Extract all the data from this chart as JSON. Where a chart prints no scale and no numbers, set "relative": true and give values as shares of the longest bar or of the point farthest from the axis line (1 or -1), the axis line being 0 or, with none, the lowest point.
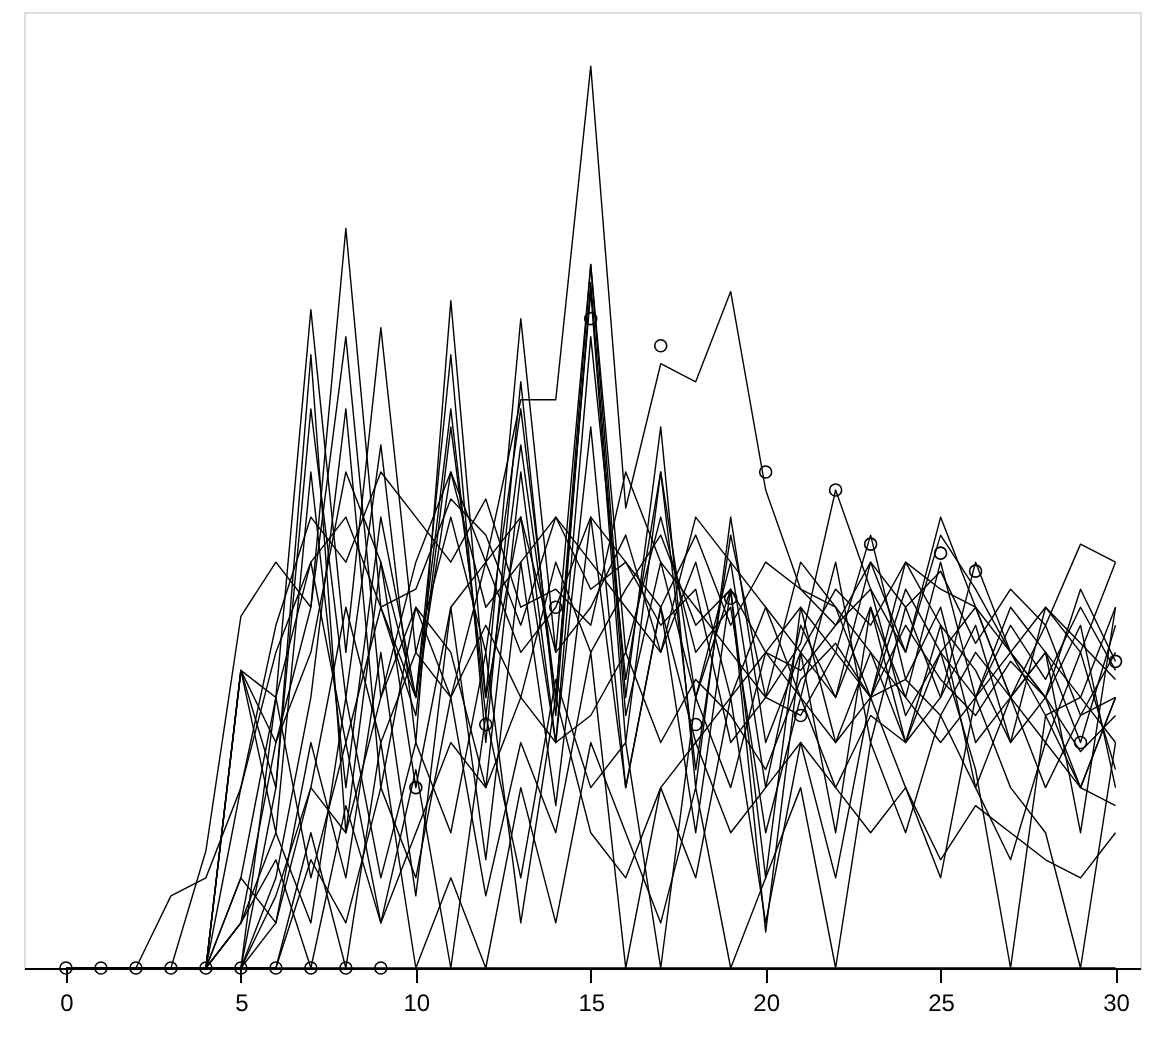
{
  "chart_data": {
    "type": "line",
    "relative": true,
    "tick_labels": "x",
    "line_style": "solid",
    "x": [
      0,
      1,
      2,
      3,
      4,
      5,
      6,
      7,
      8,
      9,
      10,
      11,
      12,
      13,
      14,
      15,
      16,
      17,
      18,
      19,
      20,
      21,
      22,
      23,
      24,
      25,
      26,
      27,
      28,
      29,
      30
    ],
    "xlim": [
      -1.2,
      30.7
    ],
    "xticks": [
      0,
      5,
      10,
      15,
      20,
      25,
      30
    ],
    "series": [
      {
        "color": "#000000",
        "values": [
          0,
          0,
          0,
          0,
          0,
          0.05,
          0.25,
          0.35,
          0.55,
          0.45,
          0.3,
          0.55,
          0.45,
          0.63,
          0.63,
          1.0,
          0.51,
          0.67,
          0.65,
          0.75,
          0.53,
          0.42,
          0.4,
          0.3,
          0.42,
          0.35,
          0.4,
          0.3,
          0.38,
          0.28,
          0.35
        ]
      },
      {
        "color": "#000000",
        "values": [
          0,
          0,
          0,
          0,
          0,
          0.33,
          0.25,
          0.4,
          0.82,
          0.4,
          0.28,
          0.6,
          0.3,
          0.5,
          0.25,
          0.7,
          0.32,
          0.55,
          0.3,
          0.45,
          0.2,
          0.38,
          0.3,
          0.45,
          0.35,
          0.5,
          0.4,
          0.3,
          0.25,
          0.35,
          0.22
        ]
      },
      {
        "color": "#000000",
        "values": [
          0,
          0,
          0,
          0,
          0,
          0.1,
          0.3,
          0.73,
          0.35,
          0.71,
          0.35,
          0.5,
          0.35,
          0.62,
          0.3,
          0.78,
          0.35,
          0.5,
          0.35,
          0.4,
          0.15,
          0.3,
          0.45,
          0.25,
          0.4,
          0.3,
          0.38,
          0.25,
          0.3,
          0.2,
          0.3
        ]
      },
      {
        "color": "#000000",
        "values": [
          0,
          0,
          0,
          0,
          0,
          0,
          0.2,
          0.62,
          0.3,
          0.58,
          0.25,
          0.74,
          0.3,
          0.72,
          0.35,
          0.78,
          0.3,
          0.6,
          0.2,
          0.5,
          0.25,
          0.35,
          0.3,
          0.4,
          0.3,
          0.45,
          0.3,
          0.35,
          0.28,
          0.3,
          0.4
        ]
      },
      {
        "color": "#000000",
        "values": [
          0,
          0,
          0,
          0,
          0,
          0.33,
          0.15,
          0.55,
          0.2,
          0.5,
          0.3,
          0.68,
          0.25,
          0.65,
          0.28,
          0.76,
          0.28,
          0.45,
          0.3,
          0.42,
          0.1,
          0.4,
          0.35,
          0.48,
          0.32,
          0.4,
          0.25,
          0.3,
          0.35,
          0.25,
          0.38
        ]
      },
      {
        "color": "#000000",
        "values": [
          0,
          0,
          0,
          0,
          0.13,
          0.39,
          0.45,
          0.4,
          0.7,
          0.3,
          0.45,
          0.55,
          0.4,
          0.45,
          0.5,
          0.45,
          0.4,
          0.35,
          0.45,
          0.3,
          0.4,
          0.3,
          0.25,
          0.35,
          0.3,
          0.25,
          0.3,
          0.4,
          0.35,
          0.3,
          0.25
        ]
      },
      {
        "color": "#000000",
        "values": [
          0,
          0,
          0,
          0.08,
          0.1,
          0.2,
          0.38,
          0.5,
          0.45,
          0.55,
          0.5,
          0.45,
          0.52,
          0.4,
          0.42,
          0.38,
          0.55,
          0.45,
          0.4,
          0.35,
          0.3,
          0.28,
          0.35,
          0.3,
          0.32,
          0.28,
          0.35,
          0.3,
          0.2,
          0.28,
          0.3
        ]
      },
      {
        "color": "#000000",
        "values": [
          0,
          0,
          0,
          0,
          0,
          0,
          0.1,
          0.3,
          0.62,
          0.2,
          0.4,
          0.35,
          0.2,
          0.55,
          0.25,
          0.6,
          0.2,
          0.4,
          0.25,
          0.3,
          0.35,
          0.4,
          0.25,
          0.3,
          0.45,
          0.38,
          0.33,
          0.25,
          0.4,
          0.35,
          0.45
        ]
      },
      {
        "color": "#000000",
        "values": [
          0,
          0,
          0,
          0,
          0,
          0.33,
          0.2,
          0.68,
          0.15,
          0.45,
          0.2,
          0.4,
          0.45,
          0.35,
          0.4,
          0.5,
          0.45,
          0.38,
          0.42,
          0.25,
          0.3,
          0.45,
          0.4,
          0.35,
          0.25,
          0.3,
          0.45,
          0.35,
          0.3,
          0.38,
          0.2
        ]
      },
      {
        "color": "#000000",
        "values": [
          0,
          0,
          0,
          0,
          0,
          0,
          0.05,
          0.2,
          0.4,
          0.25,
          0.35,
          0.3,
          0.38,
          0.3,
          0.45,
          0.35,
          0.42,
          0.48,
          0.38,
          0.42,
          0.35,
          0.33,
          0.38,
          0.42,
          0.28,
          0.35,
          0.3,
          0.38,
          0.32,
          0.4,
          0.33
        ]
      },
      {
        "color": "#000000",
        "values": [
          0,
          0,
          0,
          0,
          0,
          0.05,
          0.15,
          0.05,
          0.3,
          0.1,
          0.25,
          0.15,
          0.35,
          0.05,
          0.3,
          0.15,
          0.1,
          0.2,
          0.25,
          0.15,
          0.2,
          0.25,
          0.2,
          0.15,
          0.2,
          0.12,
          0.18,
          0.15,
          0.12,
          0.1,
          0.15
        ]
      },
      {
        "color": "#000000",
        "values": [
          0,
          0,
          0,
          0,
          0,
          0,
          0,
          0.12,
          0.05,
          0.2,
          0.1,
          0.3,
          0.08,
          0.25,
          0.15,
          0.35,
          0,
          0.2,
          0.1,
          0.3,
          0.05,
          0.25,
          0.1,
          0.3,
          0.2,
          0.1,
          0.3,
          0.2,
          0.15,
          0,
          0.25
        ]
      },
      {
        "color": "#000000",
        "values": [
          0,
          0,
          0,
          0,
          0,
          0.05,
          0.12,
          0,
          0.18,
          0.05,
          0.22,
          0,
          0.28,
          0.1,
          0.32,
          0.2,
          0.25,
          0,
          0.3,
          0.2,
          0.35,
          0.3,
          0.2,
          0.28,
          0.25,
          0.35,
          0.22,
          0,
          0.28,
          0.2,
          0.3
        ]
      },
      {
        "color": "#000000",
        "values": [
          0,
          0,
          0,
          0,
          0,
          0.2,
          0.35,
          0.45,
          0.5,
          0.4,
          0.42,
          0.52,
          0.48,
          0.38,
          0.5,
          0.42,
          0.45,
          0.4,
          0.48,
          0.38,
          0.45,
          0.42,
          0.38,
          0.45,
          0.4,
          0.44,
          0.36,
          0.42,
          0.38,
          0.47,
          0.45
        ]
      },
      {
        "color": "#000000",
        "values": [
          0,
          0,
          0,
          0,
          0,
          0.33,
          0.3,
          0.45,
          0.25,
          0.4,
          0.3,
          0.62,
          0.28,
          0.58,
          0.3,
          0.75,
          0.25,
          0.55,
          0.22,
          0.48,
          0.3,
          0.36,
          0.53,
          0.42,
          0.35,
          0.48,
          0.42,
          0.35,
          0.3,
          0.42,
          0.34
        ]
      },
      {
        "color": "#000000",
        "values": [
          0,
          0,
          0,
          0,
          0,
          0,
          0.3,
          0.1,
          0.25,
          0.05,
          0.15,
          0.25,
          0.2,
          0.3,
          0.25,
          0.28,
          0.35,
          0.25,
          0.32,
          0.28,
          0.22,
          0.32,
          0.36,
          0.3,
          0.38,
          0.32,
          0.28,
          0.34,
          0.3,
          0.24,
          0.28
        ]
      },
      {
        "color": "#000000",
        "values": [
          0,
          0,
          0,
          0,
          0,
          0.1,
          0.05,
          0.25,
          0.1,
          0.35,
          0.08,
          0.4,
          0.12,
          0.45,
          0.18,
          0.5,
          0.2,
          0.4,
          0.15,
          0.42,
          0.04,
          0.35,
          0.15,
          0.4,
          0.25,
          0.38,
          0.2,
          0.3,
          0.35,
          0.15,
          0.4
        ]
      },
      {
        "color": "#000000",
        "values": [
          0,
          0,
          0,
          0,
          0,
          0,
          0,
          0,
          0,
          0,
          0,
          0,
          0,
          0,
          0,
          0,
          0,
          0,
          0,
          0,
          0,
          0,
          0,
          0,
          0,
          0,
          0,
          0,
          0,
          0,
          0
        ]
      },
      {
        "color": "#000000",
        "values": [
          0,
          0,
          0,
          0,
          0,
          0,
          0.08,
          0.2,
          0.15,
          0.3,
          0.4,
          0.3,
          0.45,
          0.5,
          0.35,
          0.4,
          0.48,
          0.35,
          0.5,
          0.45,
          0.4,
          0.35,
          0.42,
          0.38,
          0.45,
          0.42,
          0.4,
          0.35,
          0.4,
          0.36,
          0.32
        ]
      },
      {
        "color": "#000000",
        "values": [
          0,
          0,
          0,
          0,
          0,
          0,
          0,
          0.15,
          0,
          0.25,
          0,
          0.1,
          0,
          0.2,
          0.05,
          0.25,
          0.15,
          0.05,
          0.2,
          0,
          0.1,
          0.2,
          0,
          0.25,
          0.15,
          0.28,
          0.2,
          0.12,
          0.25,
          0.2,
          0.18
        ]
      },
      {
        "type": "scatter",
        "marker": "circle",
        "color": "#000000",
        "x": [
          0,
          1,
          2,
          3,
          4,
          5,
          6,
          7,
          8,
          9,
          10,
          12,
          14,
          15,
          17,
          18,
          19,
          20,
          21,
          22,
          23,
          25,
          26,
          29,
          30
        ],
        "values": [
          0,
          0,
          0,
          0,
          0,
          0,
          0,
          0,
          0,
          0,
          0.2,
          0.27,
          0.4,
          0.72,
          0.69,
          0.27,
          0.41,
          0.55,
          0.28,
          0.53,
          0.47,
          0.46,
          0.44,
          0.25,
          0.34
        ]
      }
    ]
  }
}
